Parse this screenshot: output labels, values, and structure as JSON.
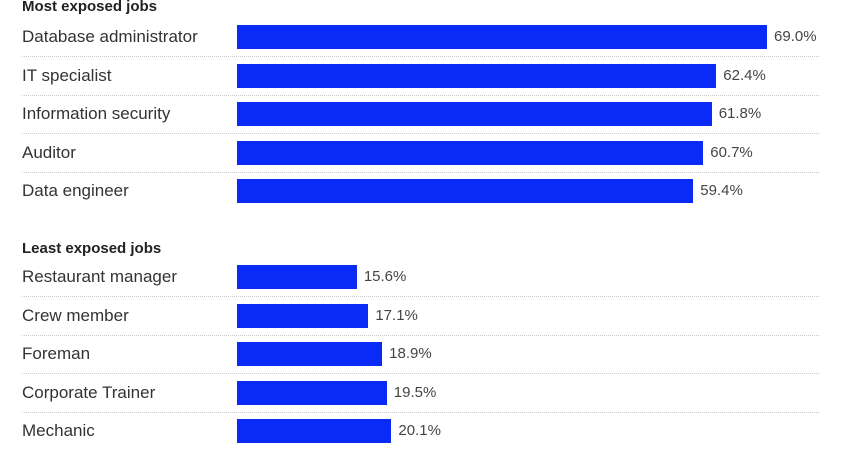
{
  "chart_data": [
    {
      "type": "bar",
      "title": "Most exposed jobs",
      "orientation": "horizontal",
      "color": "#0a2af5",
      "categories": [
        "Database administrator",
        "IT specialist",
        "Information security",
        "Auditor",
        "Data engineer"
      ],
      "values": [
        69.0,
        62.4,
        61.8,
        60.7,
        59.4
      ],
      "labels": [
        "69.0%",
        "62.4%",
        "61.8%",
        "60.7%",
        "59.4%"
      ],
      "unit": "%",
      "xlim": [
        0,
        69
      ]
    },
    {
      "type": "bar",
      "title": "Least exposed jobs",
      "orientation": "horizontal",
      "color": "#0a2af5",
      "categories": [
        "Restaurant manager",
        "Crew member",
        "Foreman",
        "Corporate Trainer",
        "Mechanic"
      ],
      "values": [
        15.6,
        17.1,
        18.9,
        19.5,
        20.1
      ],
      "labels": [
        "15.6%",
        "17.1%",
        "18.9%",
        "19.5%",
        "20.1%"
      ],
      "unit": "%",
      "xlim": [
        0,
        69
      ]
    }
  ]
}
